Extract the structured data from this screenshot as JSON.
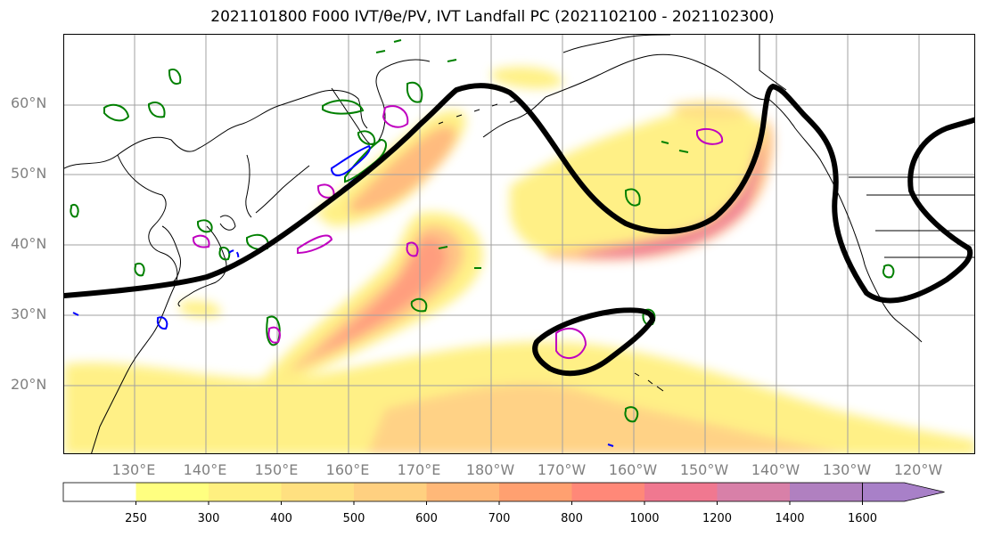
{
  "title": "2021101800 F000 IVT/θe/PV, IVT Landfall PC (2021102100 - 2021102300)",
  "map": {
    "lat_labels": [
      "60°N",
      "50°N",
      "40°N",
      "30°N",
      "20°N"
    ],
    "lon_labels": [
      "130°E",
      "140°E",
      "150°E",
      "160°E",
      "170°E",
      "180°W",
      "170°W",
      "160°W",
      "150°W",
      "140°W",
      "130°W",
      "120°W"
    ],
    "colors": {
      "coastline": "#000000",
      "gridline": "#a0a0a0",
      "landfall_pc_contour": "#000000",
      "theta_e_contour": "#008000",
      "pv_contour_positive": "#c000c0",
      "pv_contour_negative": "#0000ff"
    }
  },
  "colorbar": {
    "levels": [
      "250",
      "300",
      "400",
      "500",
      "600",
      "700",
      "800",
      "1000",
      "1200",
      "1400",
      "1600"
    ],
    "colors": [
      "#ffffff",
      "#ffff80",
      "#fff080",
      "#ffe080",
      "#ffd080",
      "#ffb878",
      "#ffa070",
      "#ff8878",
      "#f07890",
      "#d880a8",
      "#b080c0",
      "#a880c8"
    ],
    "extend": "max"
  }
}
